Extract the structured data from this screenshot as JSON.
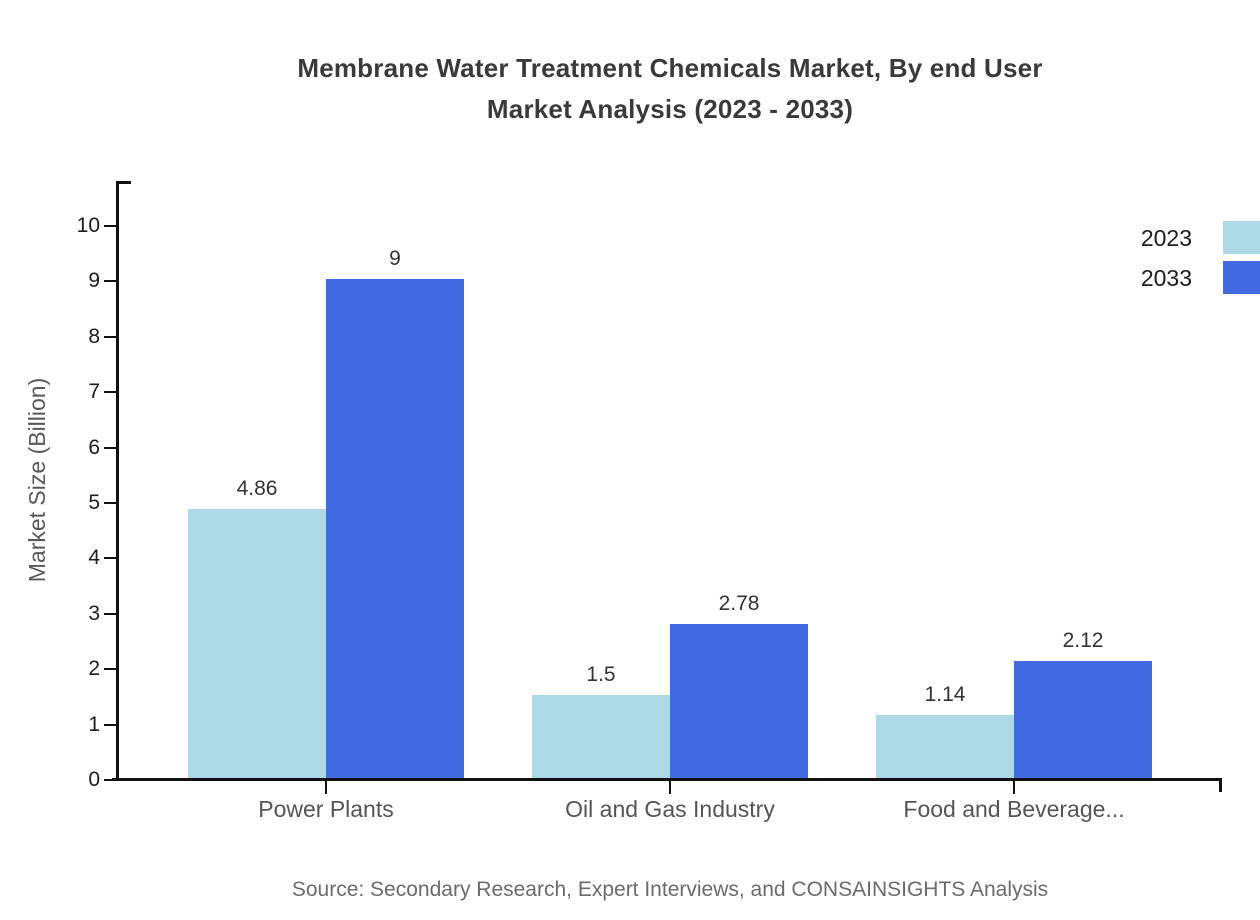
{
  "chart_data": {
    "type": "bar",
    "title": "Membrane Water Treatment Chemicals Market, By end User Market Analysis (2023 - 2033)",
    "title_lines": [
      "Membrane Water Treatment Chemicals Market, By end User",
      "Market Analysis (2023 - 2033)"
    ],
    "ylabel": "Market Size (Billion)",
    "xlabel": "",
    "categories": [
      "Power Plants",
      "Oil and Gas Industry",
      "Food and Beverage..."
    ],
    "series": [
      {
        "name": "2023",
        "color": "#add8e6",
        "values": [
          4.86,
          1.5,
          1.14
        ]
      },
      {
        "name": "2033",
        "color": "#4169e1",
        "values": [
          9,
          2.78,
          2.12
        ]
      }
    ],
    "ylim": [
      0,
      10
    ],
    "yticks": [
      0,
      1,
      2,
      3,
      4,
      5,
      6,
      7,
      8,
      9,
      10
    ],
    "grid": false,
    "legend_position": "top-right",
    "value_labels": true,
    "source": "Source: Secondary Research, Expert Interviews, and CONSAINSIGHTS Analysis",
    "palette": {
      "axis": "#111111",
      "title_text": "#3a3a3a",
      "tick_text": "#1c1c1c",
      "category_text": "#555555",
      "ylabel_text": "#595959",
      "value_text": "#333333",
      "source_text": "#6b6b6b"
    }
  }
}
